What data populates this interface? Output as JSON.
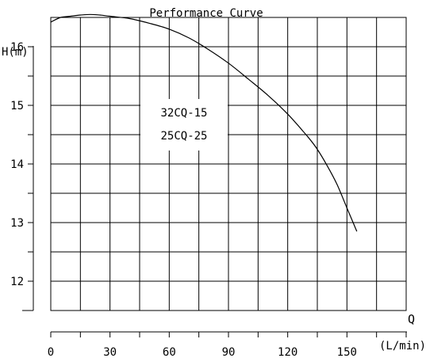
{
  "chart_data": {
    "type": "line",
    "title": "Performance Curve",
    "ylabel": "H(m)",
    "xlabel": "Q",
    "xunit": "(L/min)",
    "annotations": [
      "32CQ-15",
      "25CQ-25"
    ],
    "x_ticks": [
      0,
      30,
      60,
      90,
      120,
      150
    ],
    "y_ticks": [
      12,
      13,
      14,
      15,
      16
    ],
    "xlim": [
      0,
      180
    ],
    "ylim": [
      11.5,
      16.5
    ],
    "grid": true,
    "series": [
      {
        "points": [
          [
            0,
            16.42
          ],
          [
            5,
            16.5
          ],
          [
            10,
            16.52
          ],
          [
            15,
            16.54
          ],
          [
            20,
            16.55
          ],
          [
            25,
            16.54
          ],
          [
            30,
            16.52
          ],
          [
            40,
            16.48
          ],
          [
            50,
            16.4
          ],
          [
            60,
            16.3
          ],
          [
            70,
            16.15
          ],
          [
            80,
            15.95
          ],
          [
            90,
            15.72
          ],
          [
            100,
            15.45
          ],
          [
            110,
            15.17
          ],
          [
            120,
            14.85
          ],
          [
            130,
            14.47
          ],
          [
            135,
            14.25
          ],
          [
            140,
            13.97
          ],
          [
            145,
            13.65
          ],
          [
            150,
            13.25
          ],
          [
            155,
            12.85
          ]
        ]
      }
    ]
  }
}
